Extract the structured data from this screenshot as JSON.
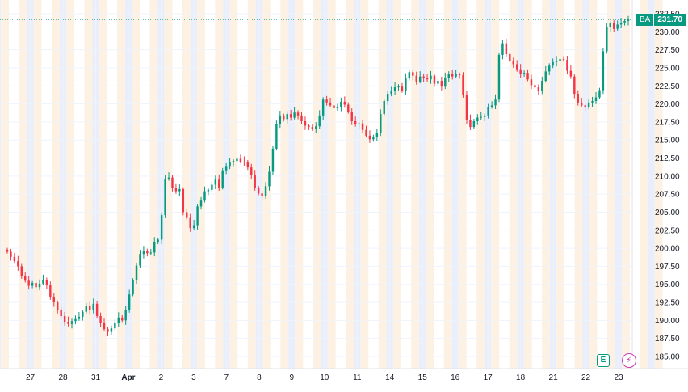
{
  "chart_data": {
    "type": "candlestick",
    "symbol": "BA",
    "last_price": "231.70",
    "y_ticks": [
      "232.50",
      "230.00",
      "227.50",
      "225.00",
      "222.50",
      "220.00",
      "217.50",
      "215.00",
      "212.50",
      "210.00",
      "207.50",
      "205.00",
      "202.50",
      "200.00",
      "197.50",
      "195.00",
      "192.50",
      "190.00",
      "187.50",
      "185.00"
    ],
    "ylim": [
      183.6,
      233.5
    ],
    "x_ticks": [
      {
        "label": "27",
        "major": false
      },
      {
        "label": "28",
        "major": false
      },
      {
        "label": "31",
        "major": false
      },
      {
        "label": "Apr",
        "major": true
      },
      {
        "label": "2",
        "major": false
      },
      {
        "label": "3",
        "major": false
      },
      {
        "label": "7",
        "major": false
      },
      {
        "label": "8",
        "major": false
      },
      {
        "label": "9",
        "major": false
      },
      {
        "label": "10",
        "major": false
      },
      {
        "label": "11",
        "major": false
      },
      {
        "label": "14",
        "major": false
      },
      {
        "label": "15",
        "major": false
      },
      {
        "label": "16",
        "major": false
      },
      {
        "label": "17",
        "major": false
      },
      {
        "label": "18",
        "major": false
      },
      {
        "label": "21",
        "major": false
      },
      {
        "label": "22",
        "major": false
      },
      {
        "label": "23",
        "major": false
      }
    ],
    "closes": [
      199.5,
      198.8,
      198.2,
      197.5,
      196.2,
      195.5,
      194.8,
      195.2,
      194.6,
      195.1,
      195.6,
      194.9,
      193.2,
      192.5,
      191.4,
      190.6,
      189.8,
      189.5,
      189.9,
      190.2,
      190.5,
      191.2,
      192.0,
      191.4,
      192.3,
      190.6,
      189.6,
      188.8,
      188.4,
      188.9,
      189.6,
      190.4,
      190.0,
      191.5,
      193.6,
      195.6,
      197.6,
      199.2,
      199.6,
      199.3,
      199.4,
      200.9,
      201.2,
      204.6,
      209.6,
      209.8,
      208.4,
      207.9,
      208.2,
      205.0,
      204.2,
      202.8,
      203.2,
      205.8,
      206.6,
      207.9,
      208.1,
      208.8,
      209.5,
      208.4,
      210.8,
      211.3,
      211.9,
      212.1,
      212.4,
      212.0,
      211.9,
      211.2,
      210.2,
      208.4,
      207.6,
      207.2,
      208.6,
      210.6,
      213.8,
      217.2,
      218.4,
      217.9,
      218.6,
      218.1,
      218.8,
      218.4,
      217.6,
      217.0,
      216.8,
      216.5,
      216.9,
      218.4,
      220.6,
      220.2,
      219.8,
      219.4,
      219.6,
      220.3,
      219.9,
      218.9,
      217.6,
      217.2,
      217.3,
      216.4,
      215.6,
      215.1,
      215.4,
      216.0,
      218.6,
      220.4,
      221.4,
      221.8,
      222.3,
      222.4,
      221.8,
      223.6,
      224.4,
      223.9,
      223.1,
      223.8,
      223.6,
      223.4,
      223.9,
      222.8,
      223.2,
      222.4,
      223.6,
      224.2,
      223.8,
      224.1,
      224.0,
      221.2,
      217.8,
      216.8,
      217.6,
      218.1,
      218.2,
      218.4,
      219.6,
      219.8,
      220.6,
      226.8,
      228.4,
      226.9,
      226.0,
      225.5,
      224.8,
      224.2,
      224.3,
      223.4,
      222.6,
      222.3,
      221.8,
      223.2,
      224.5,
      225.3,
      225.8,
      226.0,
      226.2,
      226.1,
      224.6,
      223.8,
      221.4,
      220.2,
      219.8,
      219.6,
      220.2,
      220.4,
      220.9,
      221.9,
      227.3,
      230.6,
      231.2,
      230.4,
      231.0,
      231.2,
      231.5,
      231.7
    ]
  }
}
